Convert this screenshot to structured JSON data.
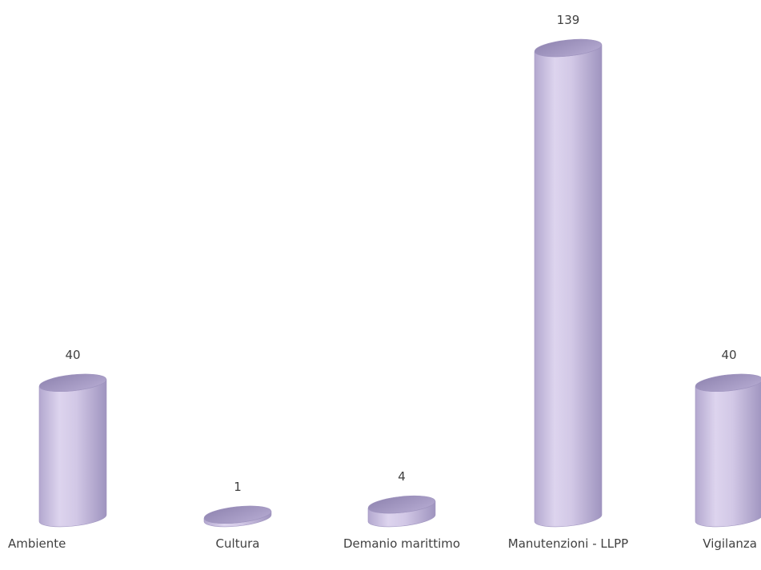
{
  "chart_data": {
    "type": "bar",
    "style": "3d-cylinder",
    "categories": [
      "Ambiente",
      "Cultura",
      "Demanio marittimo",
      "Manutenzioni - LLPP",
      "Vigilanza"
    ],
    "values": [
      40,
      1,
      4,
      139,
      40
    ],
    "data_labels": [
      "40",
      "1",
      "4",
      "139",
      "40"
    ],
    "title": "",
    "xlabel": "",
    "ylabel": "",
    "ylim": [
      0,
      139
    ],
    "grid": false,
    "legend": "none",
    "colors": {
      "bar_light": "#ddd4ee",
      "bar_mid": "#bfb3d8",
      "bar_dark": "#8f84b0",
      "top_face": "#a99dc6",
      "text": "#404040"
    }
  }
}
